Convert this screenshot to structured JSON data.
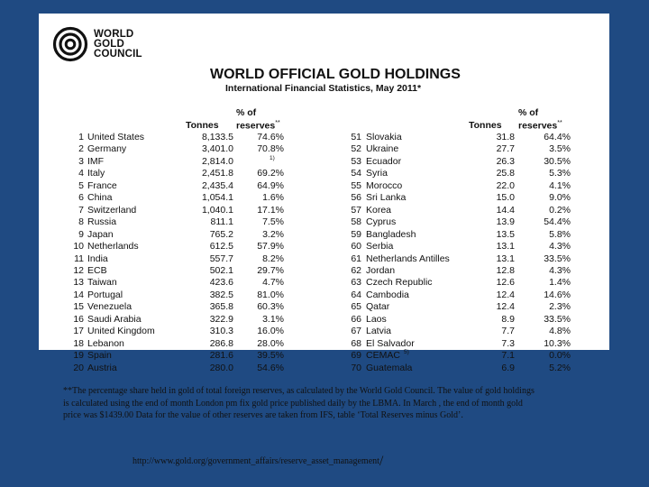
{
  "logo": {
    "line1": "WORLD",
    "line2": "GOLD",
    "line3": "COUNCIL"
  },
  "title": "WORLD OFFICIAL GOLD HOLDINGS",
  "subtitle": "International Financial Statistics, May 2011*",
  "columns": {
    "tonnes": "Tonnes",
    "pct_line1": "% of",
    "pct_line2": "reserves",
    "pct_marker": "**"
  },
  "left_rows": [
    {
      "rank": "1",
      "country": "United States",
      "tonnes": "8,133.5",
      "pct": "74.6%",
      "note": ""
    },
    {
      "rank": "2",
      "country": "Germany",
      "tonnes": "3,401.0",
      "pct": "70.8%",
      "note": ""
    },
    {
      "rank": "3",
      "country": "IMF",
      "tonnes": "2,814.0",
      "pct": "",
      "note": "1)"
    },
    {
      "rank": "4",
      "country": "Italy",
      "tonnes": "2,451.8",
      "pct": "69.2%",
      "note": ""
    },
    {
      "rank": "5",
      "country": "France",
      "tonnes": "2,435.4",
      "pct": "64.9%",
      "note": ""
    },
    {
      "rank": "6",
      "country": "China",
      "tonnes": "1,054.1",
      "pct": "1.6%",
      "note": ""
    },
    {
      "rank": "7",
      "country": "Switzerland",
      "tonnes": "1,040.1",
      "pct": "17.1%",
      "note": ""
    },
    {
      "rank": "8",
      "country": "Russia",
      "tonnes": "811.1",
      "pct": "7.5%",
      "note": ""
    },
    {
      "rank": "9",
      "country": "Japan",
      "tonnes": "765.2",
      "pct": "3.2%",
      "note": ""
    },
    {
      "rank": "10",
      "country": "Netherlands",
      "tonnes": "612.5",
      "pct": "57.9%",
      "note": ""
    },
    {
      "rank": "11",
      "country": "India",
      "tonnes": "557.7",
      "pct": "8.2%",
      "note": ""
    },
    {
      "rank": "12",
      "country": "ECB",
      "tonnes": "502.1",
      "pct": "29.7%",
      "note": ""
    },
    {
      "rank": "13",
      "country": "Taiwan",
      "tonnes": "423.6",
      "pct": "4.7%",
      "note": ""
    },
    {
      "rank": "14",
      "country": "Portugal",
      "tonnes": "382.5",
      "pct": "81.0%",
      "note": ""
    },
    {
      "rank": "15",
      "country": "Venezuela",
      "tonnes": "365.8",
      "pct": "60.3%",
      "note": ""
    },
    {
      "rank": "16",
      "country": "Saudi Arabia",
      "tonnes": "322.9",
      "pct": "3.1%",
      "note": ""
    },
    {
      "rank": "17",
      "country": "United Kingdom",
      "tonnes": "310.3",
      "pct": "16.0%",
      "note": ""
    },
    {
      "rank": "18",
      "country": "Lebanon",
      "tonnes": "286.8",
      "pct": "28.0%",
      "note": ""
    },
    {
      "rank": "19",
      "country": "Spain",
      "tonnes": "281.6",
      "pct": "39.5%",
      "note": ""
    },
    {
      "rank": "20",
      "country": "Austria",
      "tonnes": "280.0",
      "pct": "54.6%",
      "note": ""
    }
  ],
  "right_rows": [
    {
      "rank": "51",
      "country": "Slovakia",
      "tonnes": "31.8",
      "pct": "64.4%",
      "note": ""
    },
    {
      "rank": "52",
      "country": "Ukraine",
      "tonnes": "27.7",
      "pct": "3.5%",
      "note": ""
    },
    {
      "rank": "53",
      "country": "Ecuador",
      "tonnes": "26.3",
      "pct": "30.5%",
      "note": ""
    },
    {
      "rank": "54",
      "country": "Syria",
      "tonnes": "25.8",
      "pct": "5.3%",
      "note": ""
    },
    {
      "rank": "55",
      "country": "Morocco",
      "tonnes": "22.0",
      "pct": "4.1%",
      "note": ""
    },
    {
      "rank": "56",
      "country": "Sri Lanka",
      "tonnes": "15.0",
      "pct": "9.0%",
      "note": ""
    },
    {
      "rank": "57",
      "country": "Korea",
      "tonnes": "14.4",
      "pct": "0.2%",
      "note": ""
    },
    {
      "rank": "58",
      "country": "Cyprus",
      "tonnes": "13.9",
      "pct": "54.4%",
      "note": ""
    },
    {
      "rank": "59",
      "country": "Bangladesh",
      "tonnes": "13.5",
      "pct": "5.8%",
      "note": ""
    },
    {
      "rank": "60",
      "country": "Serbia",
      "tonnes": "13.1",
      "pct": "4.3%",
      "note": ""
    },
    {
      "rank": "61",
      "country": "Netherlands Antilles",
      "tonnes": "13.1",
      "pct": "33.5%",
      "note": ""
    },
    {
      "rank": "62",
      "country": "Jordan",
      "tonnes": "12.8",
      "pct": "4.3%",
      "note": ""
    },
    {
      "rank": "63",
      "country": "Czech Republic",
      "tonnes": "12.6",
      "pct": "1.4%",
      "note": ""
    },
    {
      "rank": "64",
      "country": "Cambodia",
      "tonnes": "12.4",
      "pct": "14.6%",
      "note": ""
    },
    {
      "rank": "65",
      "country": "Qatar",
      "tonnes": "12.4",
      "pct": "2.3%",
      "note": ""
    },
    {
      "rank": "66",
      "country": "Laos",
      "tonnes": "8.9",
      "pct": "33.5%",
      "note": ""
    },
    {
      "rank": "67",
      "country": "Latvia",
      "tonnes": "7.7",
      "pct": "4.8%",
      "note": ""
    },
    {
      "rank": "68",
      "country": "El Salvador",
      "tonnes": "7.3",
      "pct": "10.3%",
      "note": ""
    },
    {
      "rank": "69",
      "country": "CEMAC",
      "tonnes": "7.1",
      "pct": "0.0%",
      "note": "5)"
    },
    {
      "rank": "70",
      "country": "Guatemala",
      "tonnes": "6.9",
      "pct": "5.2%",
      "note": ""
    }
  ],
  "footnote": "**The percentage share held in gold of total foreign reserves, as calculated by the World Gold Council. The value of gold holdings is calculated using the end of month London pm fix gold price published daily by the LBMA. In March , the end of month gold price was $1439.00 Data for the value of other reserves are taken from IFS, table ‘Total Reserves minus Gold’.",
  "source_link": "http://www.gold.org/government_affairs/reserve_asset_management",
  "source_link_suffix": "/",
  "colors": {
    "background": "#1f4a82",
    "panel": "#ffffff",
    "text": "#111111"
  }
}
